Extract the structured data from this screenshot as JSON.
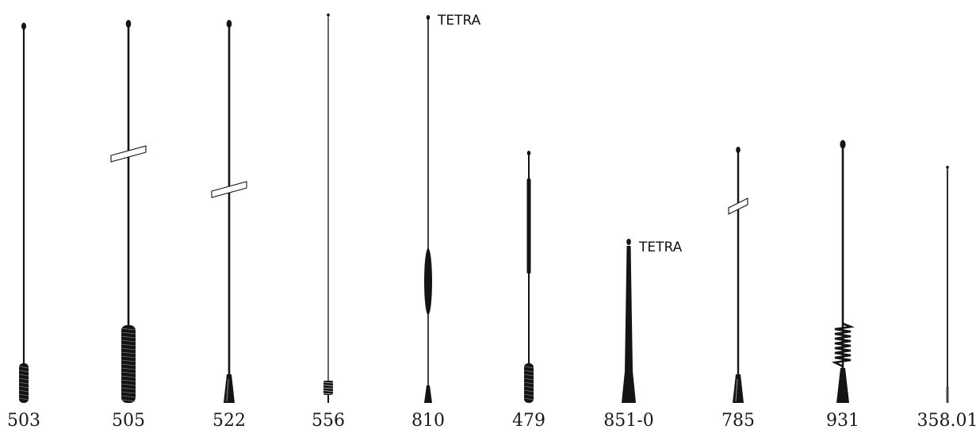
{
  "colors": {
    "antenna": "#141414",
    "background": "#ffffff",
    "label": "#1a1a1a"
  },
  "antennas": [
    {
      "model": "503",
      "base": "spring"
    },
    {
      "model": "505",
      "base": "long-spring",
      "break_mark": true
    },
    {
      "model": "522",
      "base": "tapered-mount",
      "break_mark": true
    },
    {
      "model": "556",
      "base": "small-coil"
    },
    {
      "model": "810",
      "base": "taper",
      "tag": "TETRA",
      "loading_coil": true
    },
    {
      "model": "479",
      "base": "spring"
    },
    {
      "model": "851-0",
      "base": "whip-taper",
      "tag": "TETRA"
    },
    {
      "model": "785",
      "base": "tapered-mount",
      "break_mark": true
    },
    {
      "model": "931",
      "base": "open-coil"
    },
    {
      "model": "358.01",
      "base": "plain"
    }
  ]
}
